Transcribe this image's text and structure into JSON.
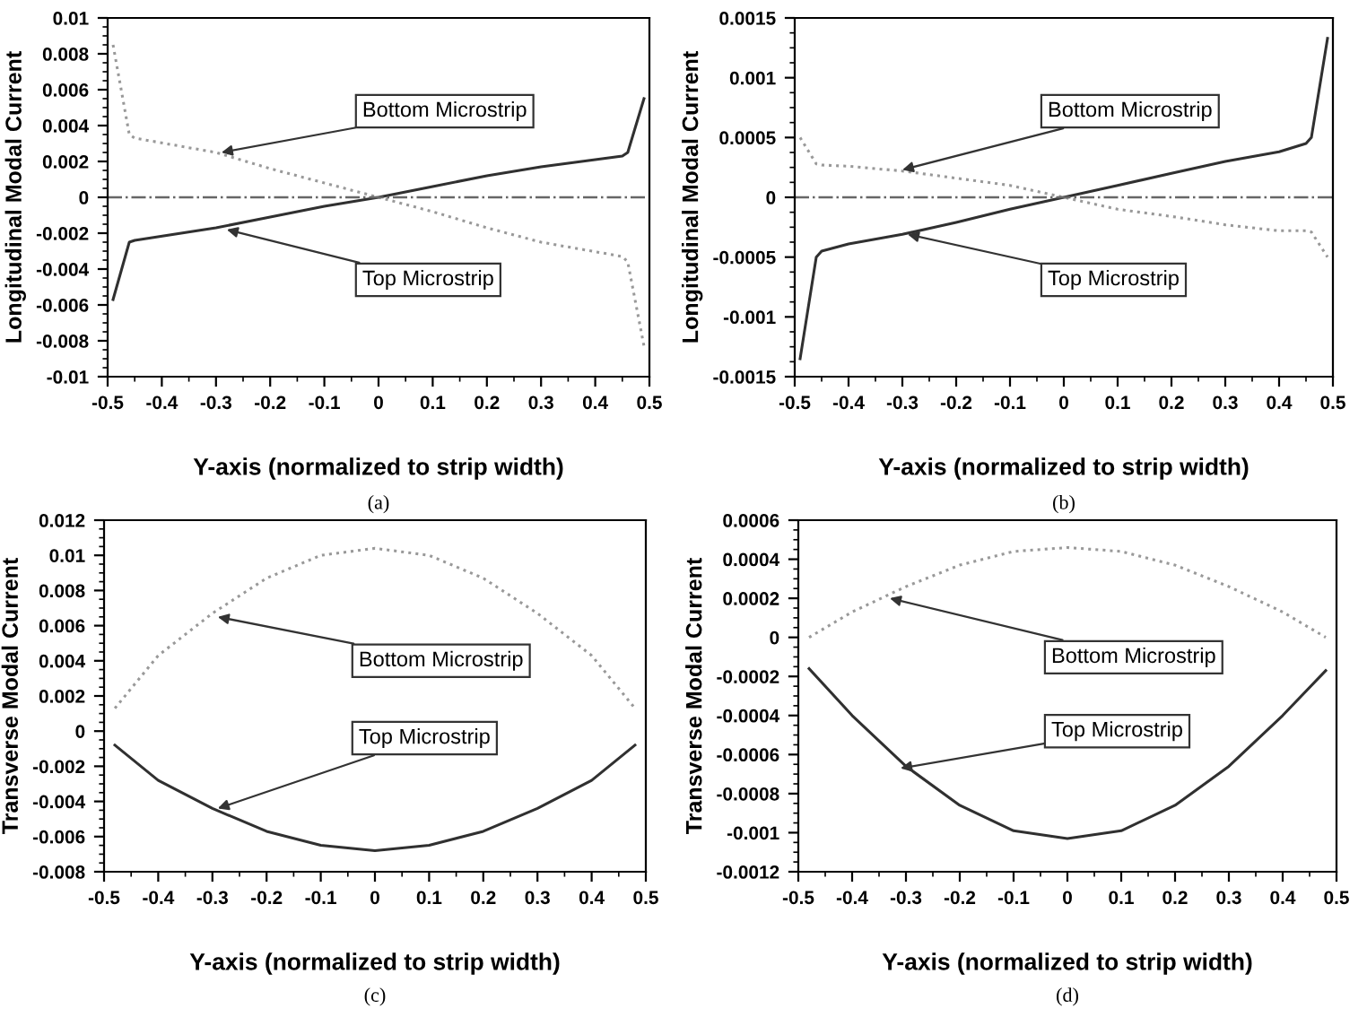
{
  "chart_data": [
    {
      "type": "line",
      "xlabel": "Y-axis (normalized to strip width)",
      "ylabel": "Longitudinal Modal Current",
      "xlim": [
        -0.5,
        0.5
      ],
      "xticks": [
        -0.5,
        -0.4,
        -0.3,
        -0.2,
        -0.1,
        0,
        0.1,
        0.2,
        0.3,
        0.4,
        0.5
      ],
      "ylim": [
        -0.01,
        0.01
      ],
      "yticks": [
        -0.01,
        -0.008,
        -0.006,
        -0.004,
        -0.002,
        0,
        0.002,
        0.004,
        0.006,
        0.008,
        0.01
      ],
      "grid": false,
      "legend": false,
      "x": [
        -0.49,
        -0.46,
        -0.45,
        -0.3,
        -0.2,
        -0.1,
        0,
        0.1,
        0.2,
        0.3,
        0.45,
        0.46,
        0.49
      ],
      "series": [
        {
          "color": "#303030",
          "line_style": "solid",
          "values": [
            -0.0057,
            -0.0025,
            -0.0024,
            -0.0017,
            -0.0011,
            -0.0005,
            0,
            0.0006,
            0.0012,
            0.0017,
            0.0023,
            0.0025,
            0.0055
          ]
        },
        {
          "color": "#999999",
          "line_style": "dotted",
          "values": [
            0.0085,
            0.0035,
            0.0033,
            0.0025,
            0.0016,
            0.0008,
            0,
            -0.0008,
            -0.0017,
            -0.0025,
            -0.0033,
            -0.0036,
            -0.0083
          ]
        }
      ],
      "ref_lines": [
        {
          "axis": "y",
          "value": 0,
          "color": "#666666",
          "line_style": "dashdot"
        }
      ],
      "annotations": [
        {
          "text": "Bottom Microstrip",
          "x": -0.29,
          "y": 0.0025
        },
        {
          "text": "Top Microstrip",
          "x": -0.28,
          "y": -0.0018
        },
        "(a)"
      ]
    },
    {
      "type": "line",
      "xlabel": "Y-axis (normalized to strip width)",
      "ylabel": "Longitudinal Modal Current",
      "xlim": [
        -0.5,
        0.5
      ],
      "xticks": [
        -0.5,
        -0.4,
        -0.3,
        -0.2,
        -0.1,
        0,
        0.1,
        0.2,
        0.3,
        0.4,
        0.5
      ],
      "ylim": [
        -0.0015,
        0.0015
      ],
      "yticks": [
        -0.0015,
        -0.001,
        -0.0005,
        0,
        0.0005,
        0.001,
        0.0015
      ],
      "grid": false,
      "legend": false,
      "x": [
        -0.49,
        -0.46,
        -0.45,
        -0.4,
        -0.3,
        -0.2,
        -0.1,
        0,
        0.1,
        0.2,
        0.3,
        0.4,
        0.45,
        0.46,
        0.49
      ],
      "series": [
        {
          "color": "#303030",
          "line_style": "solid",
          "values": [
            -0.00135,
            -0.0005,
            -0.00045,
            -0.00039,
            -0.00031,
            -0.00021,
            -0.0001,
            0,
            0.0001,
            0.0002,
            0.0003,
            0.00038,
            0.00045,
            0.0005,
            0.00133
          ]
        },
        {
          "color": "#999999",
          "line_style": "dotted",
          "values": [
            0.0005,
            0.00028,
            0.00027,
            0.00026,
            0.00022,
            0.00016,
            0.0001,
            0,
            -0.0001,
            -0.00016,
            -0.00023,
            -0.00028,
            -0.00028,
            -0.00029,
            -0.0005
          ]
        }
      ],
      "ref_lines": [
        {
          "axis": "y",
          "value": 0,
          "color": "#666666",
          "line_style": "dashdot"
        }
      ],
      "annotations": [
        {
          "text": "Bottom Microstrip",
          "x": -0.3,
          "y": 0.00023
        },
        {
          "text": "Top Microstrip",
          "x": -0.29,
          "y": -0.00031
        },
        "(b)"
      ]
    },
    {
      "type": "line",
      "xlabel": "Y-axis (normalized to strip width)",
      "ylabel": "Transverse Modal Current",
      "xlim": [
        -0.5,
        0.5
      ],
      "xticks": [
        -0.5,
        -0.4,
        -0.3,
        -0.2,
        -0.1,
        0,
        0.1,
        0.2,
        0.3,
        0.4,
        0.5
      ],
      "ylim": [
        -0.008,
        0.012
      ],
      "yticks": [
        -0.008,
        -0.006,
        -0.004,
        -0.002,
        0,
        0.002,
        0.004,
        0.006,
        0.008,
        0.01,
        0.012
      ],
      "grid": false,
      "legend": false,
      "x": [
        -0.48,
        -0.4,
        -0.3,
        -0.2,
        -0.1,
        0,
        0.1,
        0.2,
        0.3,
        0.4,
        0.48
      ],
      "series": [
        {
          "color": "#303030",
          "line_style": "solid",
          "values": [
            -0.0008,
            -0.0028,
            -0.0044,
            -0.0057,
            -0.0065,
            -0.0068,
            -0.0065,
            -0.0057,
            -0.0044,
            -0.0028,
            -0.0008
          ]
        },
        {
          "color": "#999999",
          "line_style": "dotted",
          "values": [
            0.0013,
            0.0043,
            0.0067,
            0.0087,
            0.01,
            0.0104,
            0.01,
            0.0087,
            0.0067,
            0.0043,
            0.0013
          ]
        }
      ],
      "annotations": [
        {
          "text": "Bottom Microstrip",
          "x": -0.29,
          "y": 0.0065
        },
        {
          "text": "Top Microstrip",
          "x": -0.29,
          "y": -0.0044
        },
        "(c)"
      ]
    },
    {
      "type": "line",
      "xlabel": "Y-axis (normalized to strip width)",
      "ylabel": "Transverse Modal Current",
      "xlim": [
        -0.5,
        0.5
      ],
      "xticks": [
        -0.5,
        -0.4,
        -0.3,
        -0.2,
        -0.1,
        0,
        0.1,
        0.2,
        0.3,
        0.4,
        0.5
      ],
      "ylim": [
        -0.0012,
        0.0006
      ],
      "yticks": [
        -0.0012,
        -0.001,
        -0.0008,
        -0.0006,
        -0.0004,
        -0.0002,
        0,
        0.0002,
        0.0004,
        0.0006
      ],
      "grid": false,
      "legend": false,
      "x": [
        -0.48,
        -0.4,
        -0.3,
        -0.2,
        -0.1,
        0,
        0.1,
        0.2,
        0.3,
        0.4,
        0.48
      ],
      "series": [
        {
          "color": "#303030",
          "line_style": "solid",
          "values": [
            -0.00016,
            -0.0004,
            -0.00066,
            -0.00086,
            -0.00099,
            -0.00103,
            -0.00099,
            -0.00086,
            -0.00066,
            -0.0004,
            -0.00017
          ]
        },
        {
          "color": "#999999",
          "line_style": "dotted",
          "values": [
            0,
            0.00013,
            0.00026,
            0.00037,
            0.00044,
            0.00046,
            0.00044,
            0.00037,
            0.00026,
            0.00013,
            0
          ]
        }
      ],
      "annotations": [
        {
          "text": "Bottom Microstrip",
          "x": -0.33,
          "y": 0.0002
        },
        {
          "text": "Top Microstrip",
          "x": -0.31,
          "y": -0.00067
        },
        "(d)"
      ]
    }
  ]
}
